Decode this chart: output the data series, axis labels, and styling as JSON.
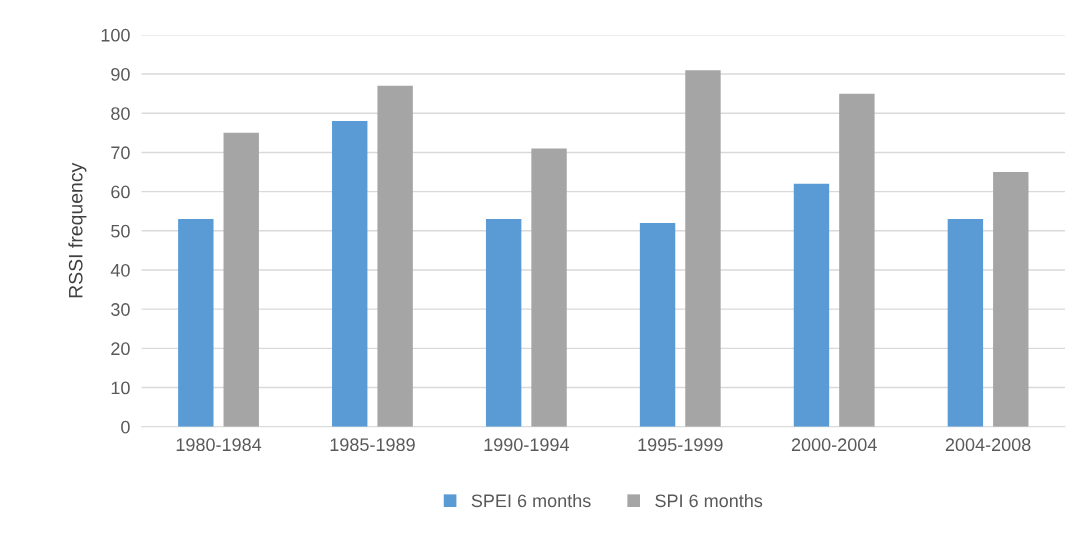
{
  "chart_data": {
    "type": "bar",
    "ylabel": "RSSI frequency",
    "categories": [
      "1980-1984",
      "1985-1989",
      "1990-1994",
      "1995-1999",
      "2000-2004",
      "2004-2008"
    ],
    "series": [
      {
        "name": "SPEI 6 months",
        "color": "#5b9bd5",
        "values": [
          53,
          78,
          53,
          52,
          62,
          53
        ]
      },
      {
        "name": "SPI 6 months",
        "color": "#a5a5a5",
        "values": [
          75,
          87,
          71,
          91,
          85,
          65
        ]
      }
    ],
    "ylim": [
      0,
      100
    ],
    "yticks": [
      0,
      10,
      20,
      30,
      40,
      50,
      60,
      70,
      80,
      90,
      100
    ],
    "grid": "y",
    "legend": "bottom"
  }
}
